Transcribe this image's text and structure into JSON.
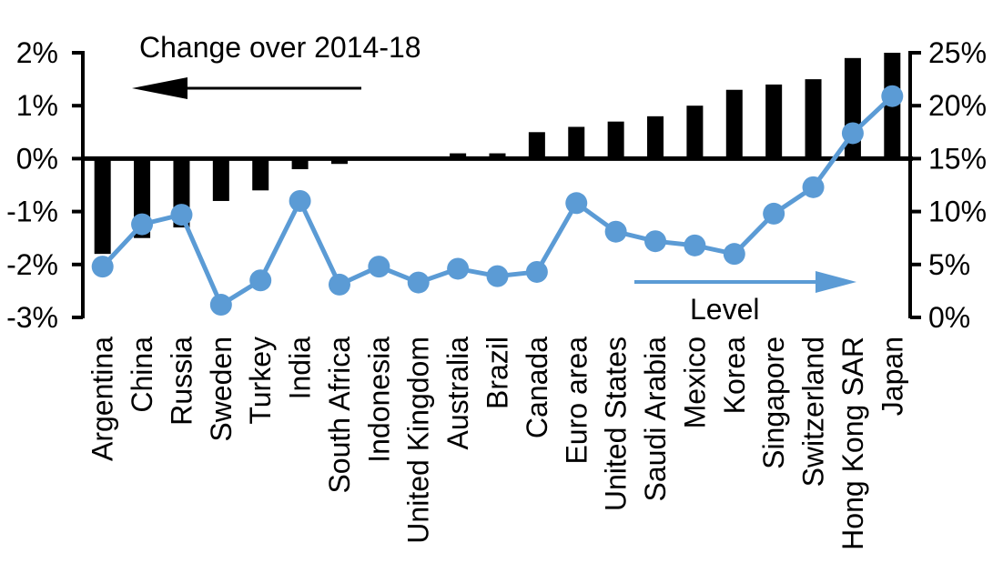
{
  "chart_data": {
    "type": "combo",
    "categories": [
      "Argentina",
      "China",
      "Russia",
      "Sweden",
      "Turkey",
      "India",
      "South Africa",
      "Indonesia",
      "United Kingdom",
      "Australia",
      "Brazil",
      "Canada",
      "Euro area",
      "United States",
      "Saudi Arabia",
      "Mexico",
      "Korea",
      "Singapore",
      "Switzerland",
      "Hong Kong SAR",
      "Japan"
    ],
    "series": [
      {
        "name": "Change over 2014-18",
        "type": "bar",
        "axis": "left",
        "color": "#000000",
        "values": [
          -1.8,
          -1.5,
          -1.3,
          -0.8,
          -0.6,
          -0.2,
          -0.1,
          0.0,
          0.0,
          0.1,
          0.1,
          0.5,
          0.6,
          0.7,
          0.8,
          1.0,
          1.3,
          1.4,
          1.5,
          1.9,
          2.0
        ]
      },
      {
        "name": "Level",
        "type": "line",
        "axis": "right",
        "color": "#5b9bd5",
        "values": [
          4.8,
          8.8,
          9.7,
          1.2,
          3.5,
          11.0,
          3.1,
          4.8,
          3.3,
          4.6,
          3.9,
          4.3,
          10.8,
          8.1,
          7.2,
          6.8,
          6.0,
          9.8,
          12.3,
          17.4,
          20.9
        ]
      }
    ],
    "left_axis": {
      "tick_labels": [
        "2%",
        "1%",
        "0%",
        "-1%",
        "-2%",
        "-3%"
      ],
      "tick_values": [
        2,
        1,
        0,
        -1,
        -2,
        -3
      ],
      "min": -3,
      "max": 2
    },
    "right_axis": {
      "tick_labels": [
        "25%",
        "20%",
        "15%",
        "10%",
        "5%",
        "0%"
      ],
      "tick_values": [
        25,
        20,
        15,
        10,
        5,
        0
      ],
      "min": 0,
      "max": 25
    },
    "grid": "off",
    "legend": "none",
    "annotations": {
      "left_series_label": "Change over 2014-18",
      "left_arrow_direction": "left",
      "right_series_label": "Level",
      "right_arrow_direction": "right"
    },
    "colors": {
      "bar": "#000000",
      "line": "#5b9bd5",
      "axis": "#000000",
      "background": "#ffffff"
    }
  }
}
